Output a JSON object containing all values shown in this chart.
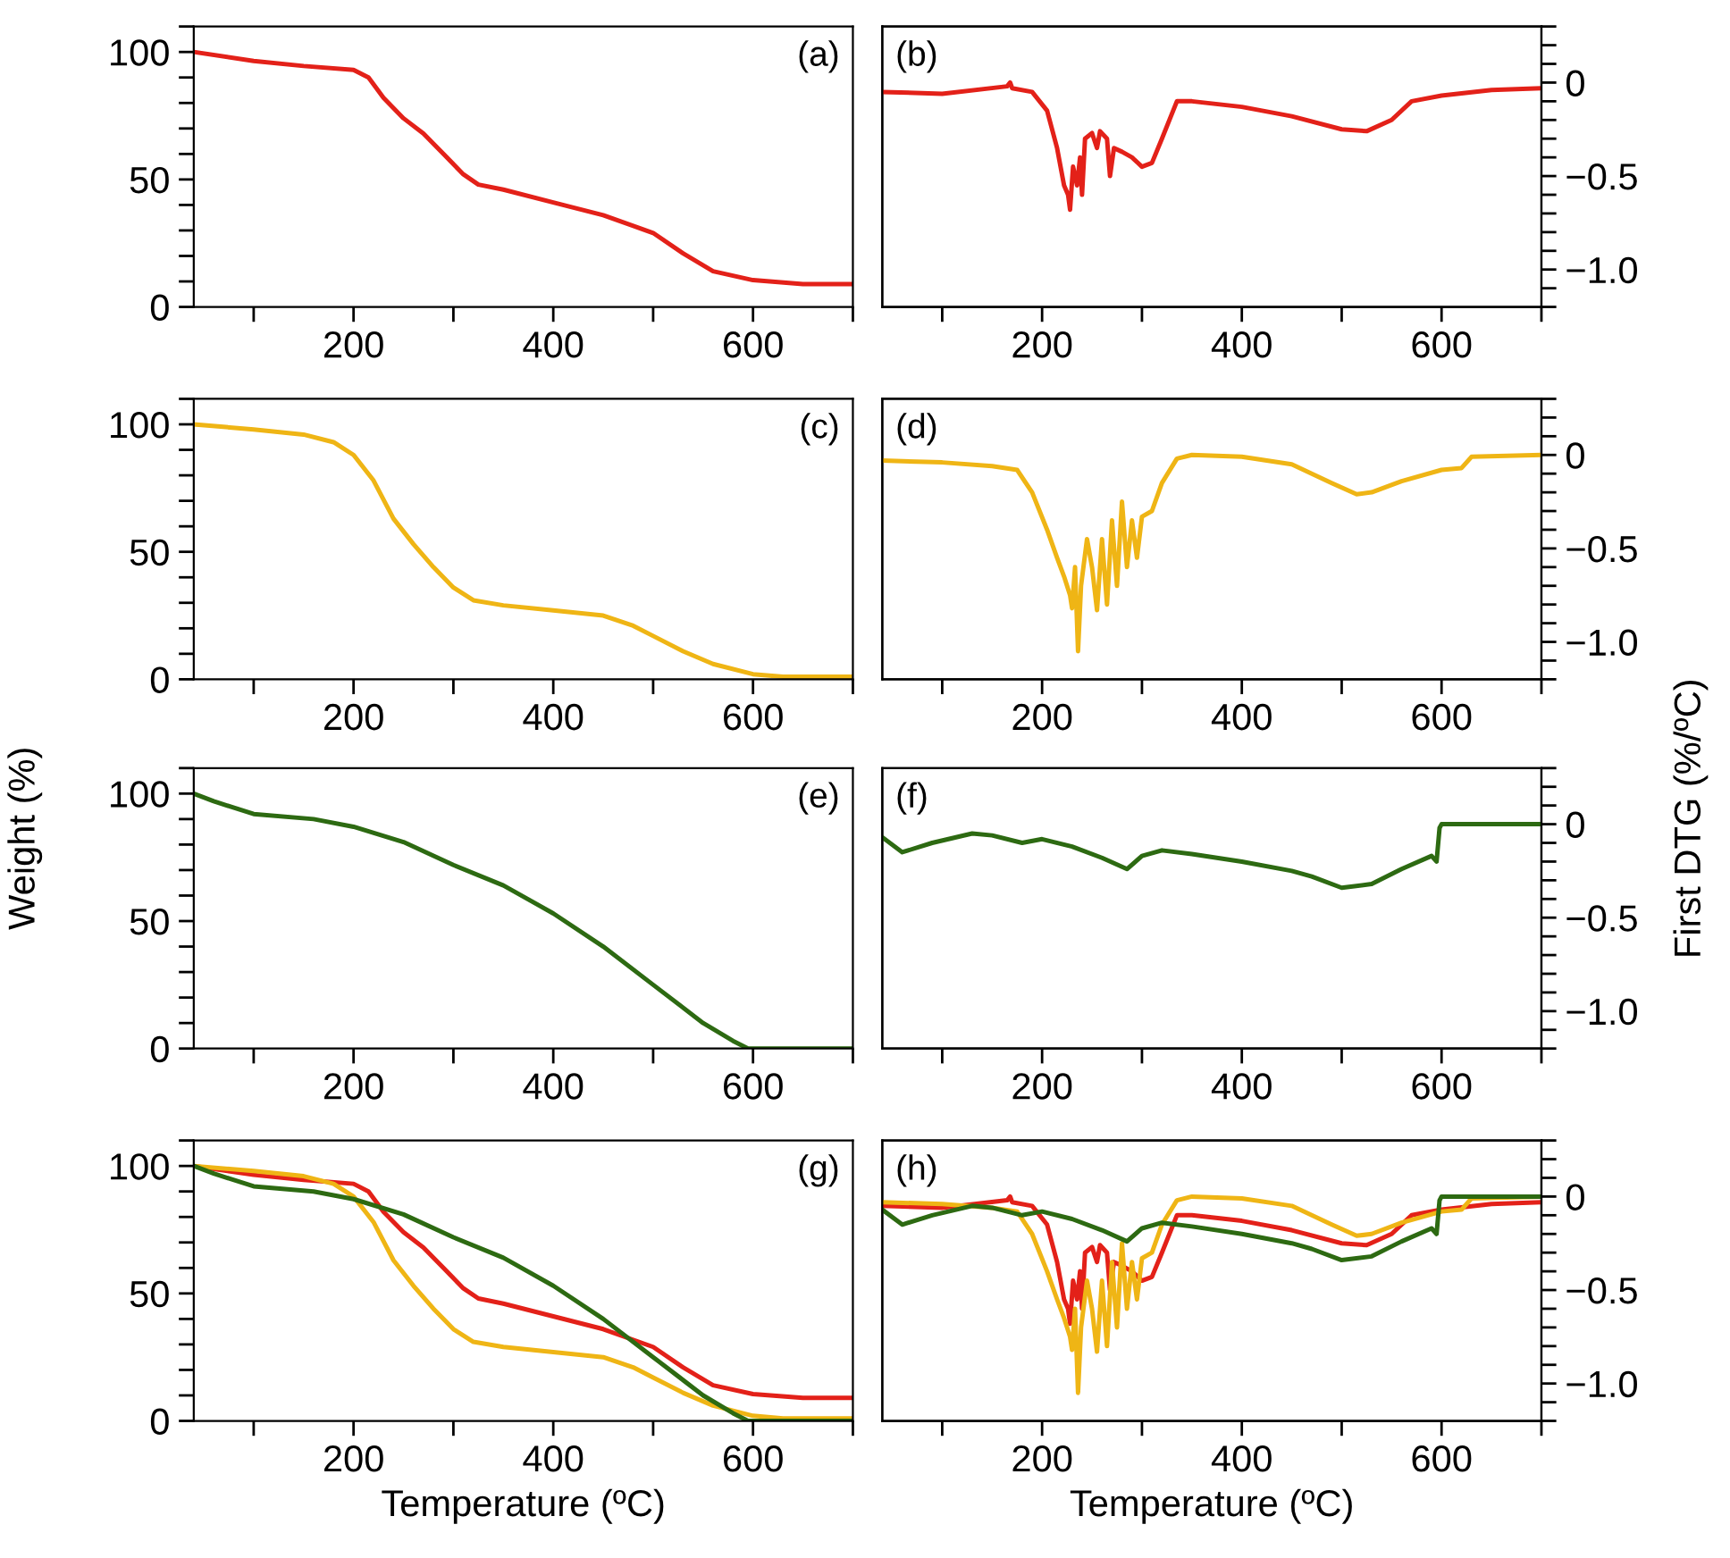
{
  "chart_data": [
    {
      "type": "line",
      "annotations": [
        "(a)"
      ],
      "xlim": [
        40,
        700
      ],
      "xticks": [
        {
          "value": 100,
          "label": null
        },
        200,
        {
          "value": 300,
          "label": null
        },
        400,
        {
          "value": 500,
          "label": null
        },
        600,
        {
          "value": 700,
          "label": null
        }
      ],
      "ylim": [
        0,
        110
      ],
      "yticks": [
        0,
        {
          "value": 10,
          "label": null
        },
        {
          "value": 20,
          "label": null
        },
        {
          "value": 30,
          "label": null
        },
        {
          "value": 40,
          "label": null
        },
        50,
        {
          "value": 60,
          "label": null
        },
        {
          "value": 70,
          "label": null
        },
        {
          "value": 80,
          "label": null
        },
        {
          "value": 90,
          "label": null
        },
        100,
        {
          "value": 110,
          "label": null
        }
      ],
      "grid": false,
      "legend": false,
      "series": [
        {
          "color": "#e32119",
          "x": [
            40,
            100,
            150,
            200,
            215,
            230,
            250,
            270,
            290,
            310,
            325,
            350,
            400,
            450,
            500,
            530,
            560,
            600,
            650,
            700
          ],
          "values": [
            100,
            96.5,
            94.5,
            93,
            90,
            82,
            74,
            68,
            60,
            52,
            48,
            46,
            41,
            36,
            29,
            21,
            14,
            10.5,
            9,
            9
          ]
        }
      ]
    },
    {
      "type": "line",
      "annotations": [
        "(b)"
      ],
      "xlim": [
        40,
        700
      ],
      "xticks": [
        {
          "value": 100,
          "label": null
        },
        200,
        {
          "value": 300,
          "label": null
        },
        400,
        {
          "value": 500,
          "label": null
        },
        600,
        {
          "value": 700,
          "label": null
        }
      ],
      "y2lim": [
        -1.2,
        0.3
      ],
      "y2ticks": [
        {
          "value": -1.2,
          "label": null
        },
        {
          "value": -1.1,
          "label": null
        },
        {
          "value": -1.0,
          "label": "−1.0"
        },
        {
          "value": -0.9,
          "label": null
        },
        {
          "value": -0.8,
          "label": null
        },
        {
          "value": -0.7,
          "label": null
        },
        {
          "value": -0.6,
          "label": null
        },
        {
          "value": -0.5,
          "label": "−0.5"
        },
        {
          "value": -0.4,
          "label": null
        },
        {
          "value": -0.3,
          "label": null
        },
        {
          "value": -0.2,
          "label": null
        },
        {
          "value": -0.1,
          "label": null
        },
        0,
        {
          "value": 0.1,
          "label": null
        },
        {
          "value": 0.2,
          "label": null
        },
        {
          "value": 0.3,
          "label": null
        }
      ],
      "grid": false,
      "legend": false,
      "series": [
        {
          "color": "#e32119",
          "axis": "y2",
          "x": [
            40,
            100,
            165,
            168,
            170,
            190,
            205,
            215,
            222,
            226,
            228,
            231,
            235,
            238,
            240,
            243,
            250,
            255,
            258,
            265,
            268,
            272,
            280,
            290,
            300,
            310,
            320,
            335,
            350,
            400,
            450,
            500,
            525,
            550,
            570,
            600,
            650,
            700
          ],
          "values": [
            -0.05,
            -0.06,
            -0.02,
            0.0,
            -0.03,
            -0.05,
            -0.15,
            -0.35,
            -0.55,
            -0.6,
            -0.68,
            -0.45,
            -0.55,
            -0.4,
            -0.6,
            -0.3,
            -0.27,
            -0.35,
            -0.26,
            -0.3,
            -0.5,
            -0.35,
            -0.37,
            -0.4,
            -0.45,
            -0.43,
            -0.3,
            -0.1,
            -0.1,
            -0.13,
            -0.18,
            -0.25,
            -0.26,
            -0.2,
            -0.1,
            -0.07,
            -0.04,
            -0.03
          ]
        }
      ]
    },
    {
      "type": "line",
      "annotations": [
        "(c)"
      ],
      "xlim": [
        40,
        700
      ],
      "xticks": [
        {
          "value": 100,
          "label": null
        },
        200,
        {
          "value": 300,
          "label": null
        },
        400,
        {
          "value": 500,
          "label": null
        },
        600,
        {
          "value": 700,
          "label": null
        }
      ],
      "ylim": [
        0,
        110
      ],
      "yticks": [
        0,
        {
          "value": 10,
          "label": null
        },
        {
          "value": 20,
          "label": null
        },
        {
          "value": 30,
          "label": null
        },
        {
          "value": 40,
          "label": null
        },
        50,
        {
          "value": 60,
          "label": null
        },
        {
          "value": 70,
          "label": null
        },
        {
          "value": 80,
          "label": null
        },
        {
          "value": 90,
          "label": null
        },
        100,
        {
          "value": 110,
          "label": null
        }
      ],
      "grid": false,
      "legend": false,
      "series": [
        {
          "color": "#efb515",
          "x": [
            40,
            100,
            150,
            180,
            200,
            220,
            240,
            260,
            280,
            300,
            320,
            350,
            400,
            450,
            480,
            500,
            530,
            560,
            600,
            630,
            700
          ],
          "values": [
            100,
            98,
            96,
            93,
            88,
            78,
            63,
            53,
            44,
            36,
            31,
            29,
            27,
            25,
            21,
            17,
            11,
            6,
            2,
            1,
            1
          ]
        }
      ]
    },
    {
      "type": "line",
      "annotations": [
        "(d)"
      ],
      "xlim": [
        40,
        700
      ],
      "xticks": [
        {
          "value": 100,
          "label": null
        },
        200,
        {
          "value": 300,
          "label": null
        },
        400,
        {
          "value": 500,
          "label": null
        },
        600,
        {
          "value": 700,
          "label": null
        }
      ],
      "y2lim": [
        -1.2,
        0.3
      ],
      "y2ticks": [
        {
          "value": -1.2,
          "label": null
        },
        {
          "value": -1.1,
          "label": null
        },
        {
          "value": -1.0,
          "label": "−1.0"
        },
        {
          "value": -0.9,
          "label": null
        },
        {
          "value": -0.8,
          "label": null
        },
        {
          "value": -0.7,
          "label": null
        },
        {
          "value": -0.6,
          "label": null
        },
        {
          "value": -0.5,
          "label": "−0.5"
        },
        {
          "value": -0.4,
          "label": null
        },
        {
          "value": -0.3,
          "label": null
        },
        {
          "value": -0.2,
          "label": null
        },
        {
          "value": -0.1,
          "label": null
        },
        0,
        {
          "value": 0.1,
          "label": null
        },
        {
          "value": 0.2,
          "label": null
        },
        {
          "value": 0.3,
          "label": null
        }
      ],
      "grid": false,
      "legend": false,
      "series": [
        {
          "color": "#efb515",
          "axis": "y2",
          "x": [
            40,
            100,
            150,
            175,
            190,
            205,
            215,
            222,
            228,
            230,
            233,
            236,
            239,
            245,
            250,
            255,
            260,
            265,
            270,
            275,
            280,
            285,
            290,
            295,
            300,
            310,
            320,
            335,
            350,
            400,
            450,
            490,
            515,
            530,
            560,
            600,
            620,
            630,
            700
          ],
          "values": [
            -0.03,
            -0.04,
            -0.06,
            -0.08,
            -0.2,
            -0.4,
            -0.55,
            -0.65,
            -0.75,
            -0.82,
            -0.6,
            -1.05,
            -0.7,
            -0.45,
            -0.6,
            -0.83,
            -0.45,
            -0.8,
            -0.35,
            -0.7,
            -0.25,
            -0.6,
            -0.35,
            -0.55,
            -0.33,
            -0.3,
            -0.15,
            -0.02,
            0.0,
            -0.01,
            -0.05,
            -0.15,
            -0.21,
            -0.2,
            -0.14,
            -0.08,
            -0.07,
            -0.01,
            0.0
          ]
        }
      ]
    },
    {
      "type": "line",
      "annotations": [
        "(e)"
      ],
      "ylabel": "Weight (%)",
      "xlim": [
        40,
        700
      ],
      "xticks": [
        {
          "value": 100,
          "label": null
        },
        200,
        {
          "value": 300,
          "label": null
        },
        400,
        {
          "value": 500,
          "label": null
        },
        600,
        {
          "value": 700,
          "label": null
        }
      ],
      "ylim": [
        0,
        110
      ],
      "yticks": [
        0,
        {
          "value": 10,
          "label": null
        },
        {
          "value": 20,
          "label": null
        },
        {
          "value": 30,
          "label": null
        },
        {
          "value": 40,
          "label": null
        },
        50,
        {
          "value": 60,
          "label": null
        },
        {
          "value": 70,
          "label": null
        },
        {
          "value": 80,
          "label": null
        },
        {
          "value": 90,
          "label": null
        },
        100,
        {
          "value": 110,
          "label": null
        }
      ],
      "grid": false,
      "legend": false,
      "series": [
        {
          "color": "#2d6a12",
          "x": [
            40,
            60,
            100,
            160,
            200,
            250,
            300,
            350,
            400,
            450,
            500,
            550,
            580,
            595,
            700
          ],
          "values": [
            100,
            97,
            92,
            90,
            87,
            81,
            72,
            64,
            53,
            40,
            25,
            10,
            3,
            0,
            0
          ]
        }
      ]
    },
    {
      "type": "line",
      "annotations": [
        "(f)"
      ],
      "y2label": "First DTG (%/ºC)",
      "xlim": [
        40,
        700
      ],
      "xticks": [
        {
          "value": 100,
          "label": null
        },
        200,
        {
          "value": 300,
          "label": null
        },
        400,
        {
          "value": 500,
          "label": null
        },
        600,
        {
          "value": 700,
          "label": null
        }
      ],
      "y2lim": [
        -1.2,
        0.3
      ],
      "y2ticks": [
        {
          "value": -1.2,
          "label": null
        },
        {
          "value": -1.1,
          "label": null
        },
        {
          "value": -1.0,
          "label": "−1.0"
        },
        {
          "value": -0.9,
          "label": null
        },
        {
          "value": -0.8,
          "label": null
        },
        {
          "value": -0.7,
          "label": null
        },
        {
          "value": -0.6,
          "label": null
        },
        {
          "value": -0.5,
          "label": "−0.5"
        },
        {
          "value": -0.4,
          "label": null
        },
        {
          "value": -0.3,
          "label": null
        },
        {
          "value": -0.2,
          "label": null
        },
        {
          "value": -0.1,
          "label": null
        },
        0,
        {
          "value": 0.1,
          "label": null
        },
        {
          "value": 0.2,
          "label": null
        },
        {
          "value": 0.3,
          "label": null
        }
      ],
      "grid": false,
      "legend": false,
      "series": [
        {
          "color": "#2d6a12",
          "axis": "y2",
          "x": [
            40,
            60,
            90,
            130,
            150,
            180,
            200,
            230,
            260,
            285,
            300,
            320,
            350,
            400,
            450,
            470,
            500,
            530,
            560,
            590,
            595,
            598,
            600,
            700
          ],
          "values": [
            -0.07,
            -0.15,
            -0.1,
            -0.05,
            -0.06,
            -0.1,
            -0.08,
            -0.12,
            -0.18,
            -0.24,
            -0.17,
            -0.14,
            -0.16,
            -0.2,
            -0.25,
            -0.28,
            -0.34,
            -0.32,
            -0.24,
            -0.17,
            -0.2,
            -0.02,
            0.0,
            0.0
          ]
        }
      ]
    },
    {
      "type": "line",
      "annotations": [
        "(g)"
      ],
      "xlabel": "Temperature (ºC)",
      "xlim": [
        40,
        700
      ],
      "xticks": [
        {
          "value": 100,
          "label": null
        },
        200,
        {
          "value": 300,
          "label": null
        },
        400,
        {
          "value": 500,
          "label": null
        },
        600,
        {
          "value": 700,
          "label": null
        }
      ],
      "ylim": [
        0,
        110
      ],
      "yticks": [
        0,
        {
          "value": 10,
          "label": null
        },
        {
          "value": 20,
          "label": null
        },
        {
          "value": 30,
          "label": null
        },
        {
          "value": 40,
          "label": null
        },
        50,
        {
          "value": 60,
          "label": null
        },
        {
          "value": 70,
          "label": null
        },
        {
          "value": 80,
          "label": null
        },
        {
          "value": 90,
          "label": null
        },
        100,
        {
          "value": 110,
          "label": null
        }
      ],
      "grid": false,
      "legend": false,
      "series": [
        {
          "color": "#e32119",
          "x": [
            40,
            100,
            150,
            200,
            215,
            230,
            250,
            270,
            290,
            310,
            325,
            350,
            400,
            450,
            500,
            530,
            560,
            600,
            650,
            700
          ],
          "values": [
            100,
            96.5,
            94.5,
            93,
            90,
            82,
            74,
            68,
            60,
            52,
            48,
            46,
            41,
            36,
            29,
            21,
            14,
            10.5,
            9,
            9
          ]
        },
        {
          "color": "#efb515",
          "x": [
            40,
            100,
            150,
            180,
            200,
            220,
            240,
            260,
            280,
            300,
            320,
            350,
            400,
            450,
            480,
            500,
            530,
            560,
            600,
            630,
            700
          ],
          "values": [
            100,
            98,
            96,
            93,
            88,
            78,
            63,
            53,
            44,
            36,
            31,
            29,
            27,
            25,
            21,
            17,
            11,
            6,
            2,
            1,
            1
          ]
        },
        {
          "color": "#2d6a12",
          "x": [
            40,
            60,
            100,
            160,
            200,
            250,
            300,
            350,
            400,
            450,
            500,
            550,
            580,
            595,
            700
          ],
          "values": [
            100,
            97,
            92,
            90,
            87,
            81,
            72,
            64,
            53,
            40,
            25,
            10,
            3,
            0,
            0
          ]
        }
      ]
    },
    {
      "type": "line",
      "annotations": [
        "(h)"
      ],
      "xlabel": "Temperature (ºC)",
      "xlim": [
        40,
        700
      ],
      "xticks": [
        {
          "value": 100,
          "label": null
        },
        200,
        {
          "value": 300,
          "label": null
        },
        400,
        {
          "value": 500,
          "label": null
        },
        600,
        {
          "value": 700,
          "label": null
        }
      ],
      "y2lim": [
        -1.2,
        0.3
      ],
      "y2ticks": [
        {
          "value": -1.2,
          "label": null
        },
        {
          "value": -1.1,
          "label": null
        },
        {
          "value": -1.0,
          "label": "−1.0"
        },
        {
          "value": -0.9,
          "label": null
        },
        {
          "value": -0.8,
          "label": null
        },
        {
          "value": -0.7,
          "label": null
        },
        {
          "value": -0.6,
          "label": null
        },
        {
          "value": -0.5,
          "label": "−0.5"
        },
        {
          "value": -0.4,
          "label": null
        },
        {
          "value": -0.3,
          "label": null
        },
        {
          "value": -0.2,
          "label": null
        },
        {
          "value": -0.1,
          "label": null
        },
        0,
        {
          "value": 0.1,
          "label": null
        },
        {
          "value": 0.2,
          "label": null
        },
        {
          "value": 0.3,
          "label": null
        }
      ],
      "grid": false,
      "legend": false,
      "series": [
        {
          "color": "#e32119",
          "axis": "y2",
          "x": [
            40,
            100,
            165,
            168,
            170,
            190,
            205,
            215,
            222,
            226,
            228,
            231,
            235,
            238,
            240,
            243,
            250,
            255,
            258,
            265,
            268,
            272,
            280,
            290,
            300,
            310,
            320,
            335,
            350,
            400,
            450,
            500,
            525,
            550,
            570,
            600,
            650,
            700
          ],
          "values": [
            -0.05,
            -0.06,
            -0.02,
            0.0,
            -0.03,
            -0.05,
            -0.15,
            -0.35,
            -0.55,
            -0.6,
            -0.68,
            -0.45,
            -0.55,
            -0.4,
            -0.6,
            -0.3,
            -0.27,
            -0.35,
            -0.26,
            -0.3,
            -0.5,
            -0.35,
            -0.37,
            -0.4,
            -0.45,
            -0.43,
            -0.3,
            -0.1,
            -0.1,
            -0.13,
            -0.18,
            -0.25,
            -0.26,
            -0.2,
            -0.1,
            -0.07,
            -0.04,
            -0.03
          ]
        },
        {
          "color": "#efb515",
          "axis": "y2",
          "x": [
            40,
            100,
            150,
            175,
            190,
            205,
            215,
            222,
            228,
            230,
            233,
            236,
            239,
            245,
            250,
            255,
            260,
            265,
            270,
            275,
            280,
            285,
            290,
            295,
            300,
            310,
            320,
            335,
            350,
            400,
            450,
            490,
            515,
            530,
            560,
            600,
            620,
            630,
            700
          ],
          "values": [
            -0.03,
            -0.04,
            -0.06,
            -0.08,
            -0.2,
            -0.4,
            -0.55,
            -0.65,
            -0.75,
            -0.82,
            -0.6,
            -1.05,
            -0.7,
            -0.45,
            -0.6,
            -0.83,
            -0.45,
            -0.8,
            -0.35,
            -0.7,
            -0.25,
            -0.6,
            -0.35,
            -0.55,
            -0.33,
            -0.3,
            -0.15,
            -0.02,
            0.0,
            -0.01,
            -0.05,
            -0.15,
            -0.21,
            -0.2,
            -0.14,
            -0.08,
            -0.07,
            -0.01,
            0.0
          ]
        },
        {
          "color": "#2d6a12",
          "axis": "y2",
          "x": [
            40,
            60,
            90,
            130,
            150,
            180,
            200,
            230,
            260,
            285,
            300,
            320,
            350,
            400,
            450,
            470,
            500,
            530,
            560,
            590,
            595,
            598,
            600,
            700
          ],
          "values": [
            -0.07,
            -0.15,
            -0.1,
            -0.05,
            -0.06,
            -0.1,
            -0.08,
            -0.12,
            -0.18,
            -0.24,
            -0.17,
            -0.14,
            -0.16,
            -0.2,
            -0.25,
            -0.28,
            -0.34,
            -0.32,
            -0.24,
            -0.17,
            -0.2,
            -0.02,
            0.0,
            0.0
          ]
        }
      ]
    }
  ]
}
